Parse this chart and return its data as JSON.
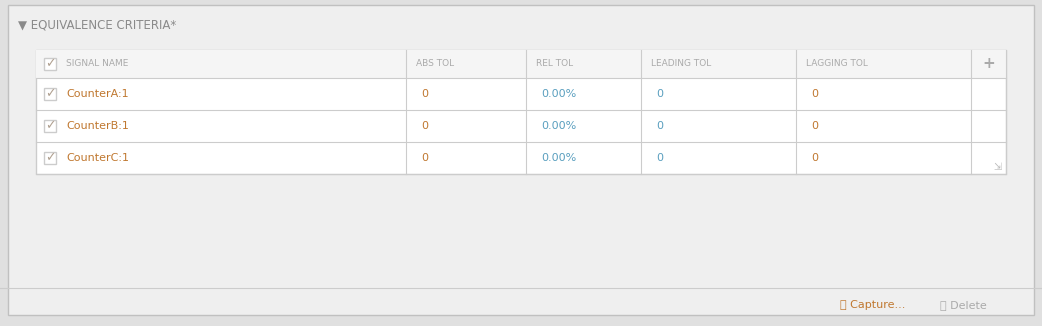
{
  "title": "EQUIVALENCE CRITERIA*",
  "title_color": "#8a8a8a",
  "title_fontsize": 8.5,
  "bg_color": "#e0e0e0",
  "panel_bg": "#efefef",
  "table_bg": "#ffffff",
  "header_bg": "#f5f5f5",
  "border_color": "#cccccc",
  "outer_border_color": "#c0c0c0",
  "header_text_color": "#aaaaaa",
  "check_color": "#b0a090",
  "check_box_color": "#cccccc",
  "signal_name_color": "#c07830",
  "abs_tol_color": "#c07830",
  "rel_tol_color": "#5a9fbf",
  "leading_tol_color": "#5a9fbf",
  "lagging_tol_color": "#c07830",
  "plus_color": "#aaaaaa",
  "capture_color": "#c07830",
  "delete_color": "#aaaaaa",
  "col_headers": [
    "SIGNAL NAME",
    "ABS TOL",
    "REL TOL",
    "LEADING TOL",
    "LAGGING TOL"
  ],
  "rows": [
    [
      "CounterA:1",
      "0",
      "0.00%",
      "0",
      "0"
    ],
    [
      "CounterB:1",
      "0",
      "0.00%",
      "0",
      "0"
    ],
    [
      "CounterC:1",
      "0",
      "0.00%",
      "0",
      "0"
    ]
  ],
  "font_size_header": 6.5,
  "font_size_data": 8,
  "font_size_title": 8.5,
  "font_size_check": 9,
  "font_size_footer": 8
}
